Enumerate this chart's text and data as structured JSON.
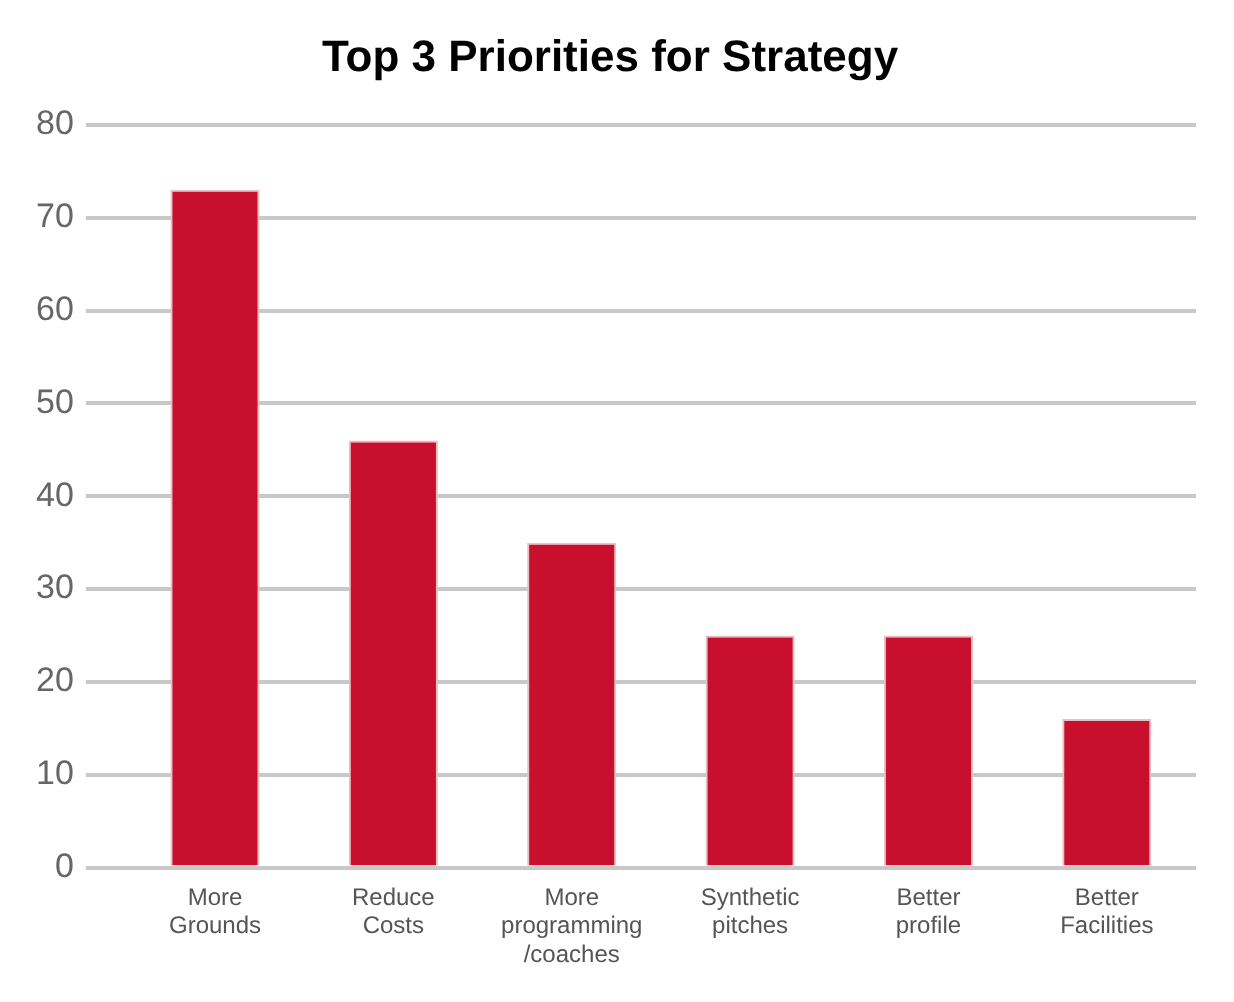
{
  "chart_data": {
    "type": "bar",
    "title": "Top 3 Priorities for Strategy",
    "categories": [
      "More Grounds",
      "Reduce Costs",
      "More programming /coaches",
      "Synthetic pitches",
      "Better profile",
      "Better Facilities"
    ],
    "values": [
      73,
      46,
      35,
      25,
      25,
      16
    ],
    "color": "#c8102e",
    "ylim": [
      0,
      80
    ],
    "yticks": [
      0,
      10,
      20,
      30,
      40,
      50,
      60,
      70,
      80
    ],
    "grid": "y"
  }
}
